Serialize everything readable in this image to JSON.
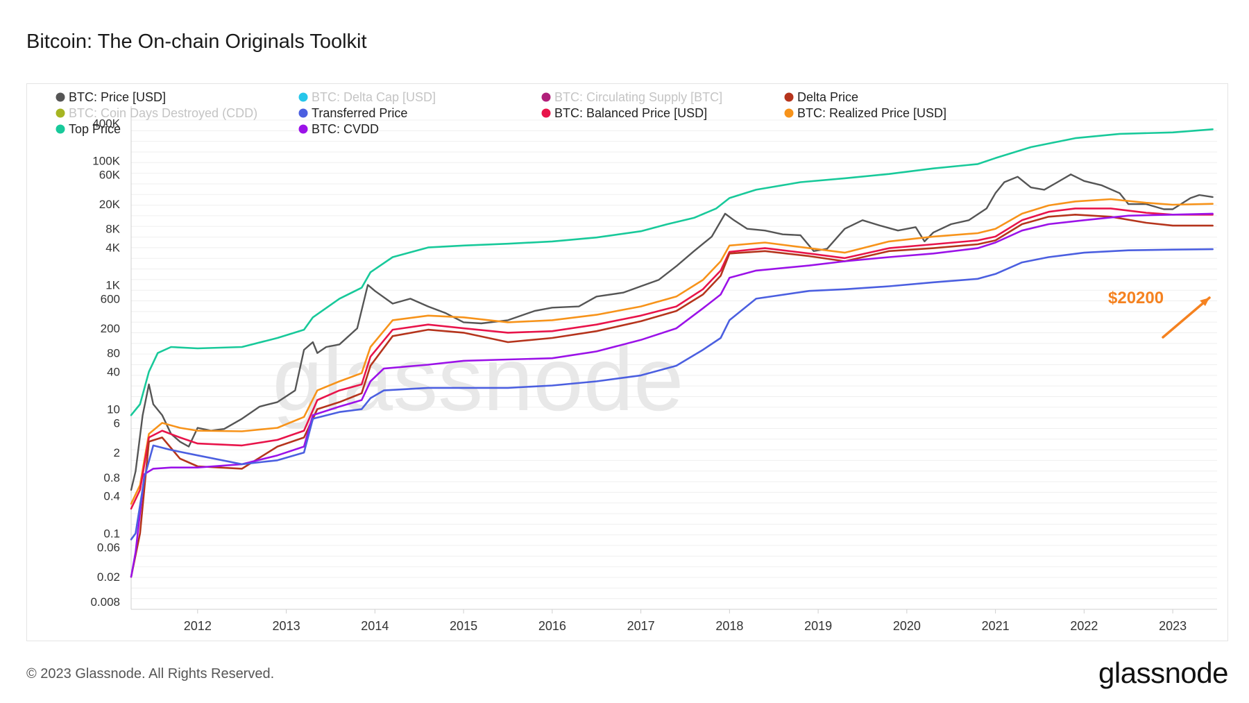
{
  "title": "Bitcoin: The On-chain Originals Toolkit",
  "footer": "© 2023 Glassnode. All Rights Reserved.",
  "brand": "glassnode",
  "watermark": "glassnode",
  "annotation": {
    "text": "$20200",
    "color": "#f58220"
  },
  "chart_data": {
    "type": "line",
    "y_scale": "log",
    "x_ticks": [
      "2012",
      "2013",
      "2014",
      "2015",
      "2016",
      "2017",
      "2018",
      "2019",
      "2020",
      "2021",
      "2022",
      "2023"
    ],
    "y_ticks": [
      {
        "v": 400000,
        "label": "400K"
      },
      {
        "v": 100000,
        "label": "100K"
      },
      {
        "v": 60000,
        "label": "60K"
      },
      {
        "v": 20000,
        "label": "20K"
      },
      {
        "v": 8000,
        "label": "8K"
      },
      {
        "v": 4000,
        "label": "4K"
      },
      {
        "v": 1000,
        "label": "1K"
      },
      {
        "v": 600,
        "label": "600"
      },
      {
        "v": 200,
        "label": "200"
      },
      {
        "v": 80,
        "label": "80"
      },
      {
        "v": 40,
        "label": "40"
      },
      {
        "v": 10,
        "label": "10"
      },
      {
        "v": 6,
        "label": "6"
      },
      {
        "v": 2,
        "label": "2"
      },
      {
        "v": 0.8,
        "label": "0.8"
      },
      {
        "v": 0.4,
        "label": "0.4"
      },
      {
        "v": 0.1,
        "label": "0.1"
      },
      {
        "v": 0.06,
        "label": "0.06"
      },
      {
        "v": 0.02,
        "label": "0.02"
      },
      {
        "v": 0.008,
        "label": "0.008"
      }
    ],
    "xlim": [
      2011.25,
      2023.5
    ],
    "ylim": [
      0.006,
      450000
    ],
    "legend": [
      {
        "name": "BTC: Price [USD]",
        "color": "#555555",
        "active": true
      },
      {
        "name": "BTC: Delta Cap [USD]",
        "color": "#26c6ea",
        "active": false
      },
      {
        "name": "BTC: Circulating Supply [BTC]",
        "color": "#b0207a",
        "active": false
      },
      {
        "name": "Delta Price",
        "color": "#b5341c",
        "active": true
      },
      {
        "name": "BTC: Coin Days Destroyed (CDD)",
        "color": "#a6b522",
        "active": false
      },
      {
        "name": "Transferred Price",
        "color": "#4b5fe0",
        "active": true
      },
      {
        "name": "BTC: Balanced Price [USD]",
        "color": "#e8144a",
        "active": true
      },
      {
        "name": "BTC: Realized Price [USD]",
        "color": "#f7931a",
        "active": true
      },
      {
        "name": "Top Price",
        "color": "#18c99a",
        "active": true
      },
      {
        "name": "BTC: CVDD",
        "color": "#9b12e8",
        "active": true
      }
    ],
    "series": [
      {
        "key": "top",
        "color": "#18c99a",
        "x": [
          2011.25,
          2011.35,
          2011.45,
          2011.55,
          2011.7,
          2012.0,
          2012.5,
          2012.9,
          2013.2,
          2013.3,
          2013.6,
          2013.85,
          2013.95,
          2014.2,
          2014.6,
          2015.0,
          2015.5,
          2016.0,
          2016.5,
          2017.0,
          2017.3,
          2017.6,
          2017.85,
          2018.0,
          2018.3,
          2018.8,
          2019.3,
          2019.8,
          2020.3,
          2020.8,
          2021.0,
          2021.4,
          2021.9,
          2022.4,
          2023.0,
          2023.45
        ],
        "y": [
          8,
          12,
          40,
          80,
          100,
          95,
          100,
          140,
          190,
          300,
          600,
          900,
          1600,
          2800,
          4000,
          4300,
          4600,
          5000,
          5800,
          7300,
          9500,
          12000,
          17000,
          25000,
          34000,
          45000,
          52000,
          61000,
          75000,
          88000,
          110000,
          165000,
          230000,
          270000,
          285000,
          320000
        ]
      },
      {
        "key": "price",
        "color": "#555555",
        "x": [
          2011.25,
          2011.3,
          2011.38,
          2011.45,
          2011.5,
          2011.6,
          2011.7,
          2011.8,
          2011.9,
          2012.0,
          2012.15,
          2012.3,
          2012.5,
          2012.7,
          2012.9,
          2013.1,
          2013.2,
          2013.3,
          2013.35,
          2013.45,
          2013.6,
          2013.8,
          2013.92,
          2014.0,
          2014.2,
          2014.4,
          2014.6,
          2014.8,
          2015.0,
          2015.2,
          2015.5,
          2015.8,
          2016.0,
          2016.3,
          2016.5,
          2016.8,
          2017.0,
          2017.2,
          2017.4,
          2017.6,
          2017.8,
          2017.95,
          2018.05,
          2018.2,
          2018.4,
          2018.6,
          2018.8,
          2018.95,
          2019.1,
          2019.3,
          2019.5,
          2019.7,
          2019.9,
          2020.1,
          2020.2,
          2020.3,
          2020.5,
          2020.7,
          2020.9,
          2021.0,
          2021.1,
          2021.25,
          2021.4,
          2021.55,
          2021.7,
          2021.85,
          2022.0,
          2022.2,
          2022.4,
          2022.5,
          2022.7,
          2022.9,
          2023.0,
          2023.2,
          2023.3,
          2023.45
        ],
        "y": [
          0.5,
          1,
          8,
          25,
          12,
          8,
          4,
          3,
          2.5,
          5,
          4.5,
          4.8,
          7,
          11,
          13,
          20,
          90,
          120,
          80,
          100,
          110,
          200,
          1000,
          800,
          500,
          600,
          450,
          350,
          250,
          240,
          270,
          380,
          430,
          450,
          650,
          750,
          950,
          1200,
          2000,
          3500,
          6000,
          14000,
          11000,
          8000,
          7500,
          6500,
          6300,
          3500,
          3800,
          8000,
          11000,
          9000,
          7500,
          8500,
          5000,
          7000,
          9500,
          11000,
          17000,
          30000,
          45000,
          55000,
          37000,
          34000,
          45000,
          60000,
          47000,
          40000,
          30000,
          20000,
          20000,
          16500,
          16500,
          25000,
          28000,
          26000
        ]
      },
      {
        "key": "realized",
        "color": "#f7931a",
        "x": [
          2011.25,
          2011.35,
          2011.45,
          2011.6,
          2011.8,
          2012.0,
          2012.5,
          2012.9,
          2013.2,
          2013.35,
          2013.6,
          2013.85,
          2013.95,
          2014.2,
          2014.6,
          2015.0,
          2015.5,
          2016.0,
          2016.5,
          2017.0,
          2017.4,
          2017.7,
          2017.9,
          2018.0,
          2018.4,
          2018.9,
          2019.3,
          2019.8,
          2020.3,
          2020.8,
          2021.0,
          2021.3,
          2021.6,
          2021.9,
          2022.3,
          2022.7,
          2023.0,
          2023.45
        ],
        "y": [
          0.3,
          0.6,
          4,
          6,
          5,
          4.5,
          4.4,
          5,
          7.5,
          20,
          28,
          38,
          100,
          270,
          320,
          300,
          250,
          270,
          330,
          450,
          650,
          1200,
          2400,
          4300,
          4800,
          3900,
          3300,
          5000,
          6000,
          6800,
          8000,
          14000,
          19000,
          22000,
          24000,
          21000,
          19500,
          20200
        ]
      },
      {
        "key": "balanced",
        "color": "#e8144a",
        "x": [
          2011.25,
          2011.35,
          2011.45,
          2011.6,
          2011.8,
          2012.0,
          2012.5,
          2012.9,
          2013.2,
          2013.35,
          2013.6,
          2013.85,
          2013.95,
          2014.2,
          2014.6,
          2015.0,
          2015.5,
          2016.0,
          2016.5,
          2017.0,
          2017.4,
          2017.7,
          2017.9,
          2018.0,
          2018.4,
          2018.9,
          2019.3,
          2019.8,
          2020.3,
          2020.8,
          2021.0,
          2021.3,
          2021.6,
          2021.9,
          2022.3,
          2022.7,
          2023.0,
          2023.45
        ],
        "y": [
          0.25,
          0.5,
          3.5,
          4.5,
          3.5,
          2.8,
          2.6,
          3.2,
          4.5,
          14,
          20,
          25,
          70,
          190,
          230,
          200,
          170,
          180,
          230,
          320,
          450,
          850,
          1700,
          3400,
          3900,
          3200,
          2700,
          3900,
          4500,
          5200,
          6000,
          11000,
          15000,
          17000,
          17000,
          14500,
          13500,
          13500
        ]
      },
      {
        "key": "delta",
        "color": "#b5341c",
        "x": [
          2011.25,
          2011.35,
          2011.45,
          2011.6,
          2011.8,
          2012.0,
          2012.5,
          2012.9,
          2013.2,
          2013.35,
          2013.6,
          2013.85,
          2013.95,
          2014.2,
          2014.6,
          2015.0,
          2015.5,
          2016.0,
          2016.5,
          2017.0,
          2017.4,
          2017.7,
          2017.9,
          2018.0,
          2018.4,
          2018.9,
          2019.3,
          2019.8,
          2020.3,
          2020.8,
          2021.0,
          2021.3,
          2021.6,
          2021.9,
          2022.3,
          2022.7,
          2023.0,
          2023.45
        ],
        "y": [
          0.02,
          0.1,
          3,
          3.5,
          1.6,
          1.2,
          1.1,
          2.5,
          3.5,
          10,
          13,
          18,
          50,
          150,
          190,
          170,
          120,
          140,
          180,
          260,
          380,
          700,
          1400,
          3200,
          3500,
          2900,
          2400,
          3500,
          3900,
          4500,
          5200,
          9500,
          12500,
          13500,
          12500,
          10000,
          9000,
          9000
        ]
      },
      {
        "key": "cvdd",
        "color": "#9b12e8",
        "x": [
          2011.25,
          2011.3,
          2011.4,
          2011.5,
          2011.7,
          2012.0,
          2012.5,
          2012.9,
          2013.2,
          2013.3,
          2013.6,
          2013.85,
          2013.95,
          2014.1,
          2014.6,
          2015.0,
          2015.5,
          2016.0,
          2016.5,
          2017.0,
          2017.4,
          2017.7,
          2017.9,
          2018.0,
          2018.3,
          2018.9,
          2019.3,
          2019.8,
          2020.3,
          2020.8,
          2021.0,
          2021.3,
          2021.6,
          2022.0,
          2022.5,
          2023.0,
          2023.45
        ],
        "y": [
          0.02,
          0.05,
          0.9,
          1.1,
          1.15,
          1.15,
          1.3,
          1.8,
          2.5,
          8,
          11,
          14,
          28,
          45,
          52,
          60,
          63,
          66,
          85,
          130,
          200,
          420,
          700,
          1300,
          1700,
          2050,
          2400,
          2800,
          3200,
          3900,
          4800,
          7500,
          9500,
          11000,
          13000,
          13500,
          14000
        ]
      },
      {
        "key": "transferred",
        "color": "#4b5fe0",
        "x": [
          2011.25,
          2011.3,
          2011.4,
          2011.5,
          2011.7,
          2012.0,
          2012.5,
          2012.9,
          2013.2,
          2013.3,
          2013.6,
          2013.85,
          2013.95,
          2014.1,
          2014.6,
          2015.0,
          2015.5,
          2016.0,
          2016.5,
          2017.0,
          2017.4,
          2017.7,
          2017.9,
          2018.0,
          2018.3,
          2018.9,
          2019.3,
          2019.8,
          2020.3,
          2020.8,
          2021.0,
          2021.3,
          2021.6,
          2022.0,
          2022.5,
          2023.0,
          2023.45
        ],
        "y": [
          0.08,
          0.1,
          0.8,
          2.6,
          2.2,
          1.8,
          1.3,
          1.5,
          2,
          7,
          9,
          10,
          15,
          20,
          22,
          22,
          22,
          24,
          28,
          35,
          50,
          90,
          140,
          270,
          600,
          800,
          850,
          950,
          1100,
          1250,
          1500,
          2300,
          2800,
          3300,
          3600,
          3700,
          3750
        ]
      }
    ]
  }
}
